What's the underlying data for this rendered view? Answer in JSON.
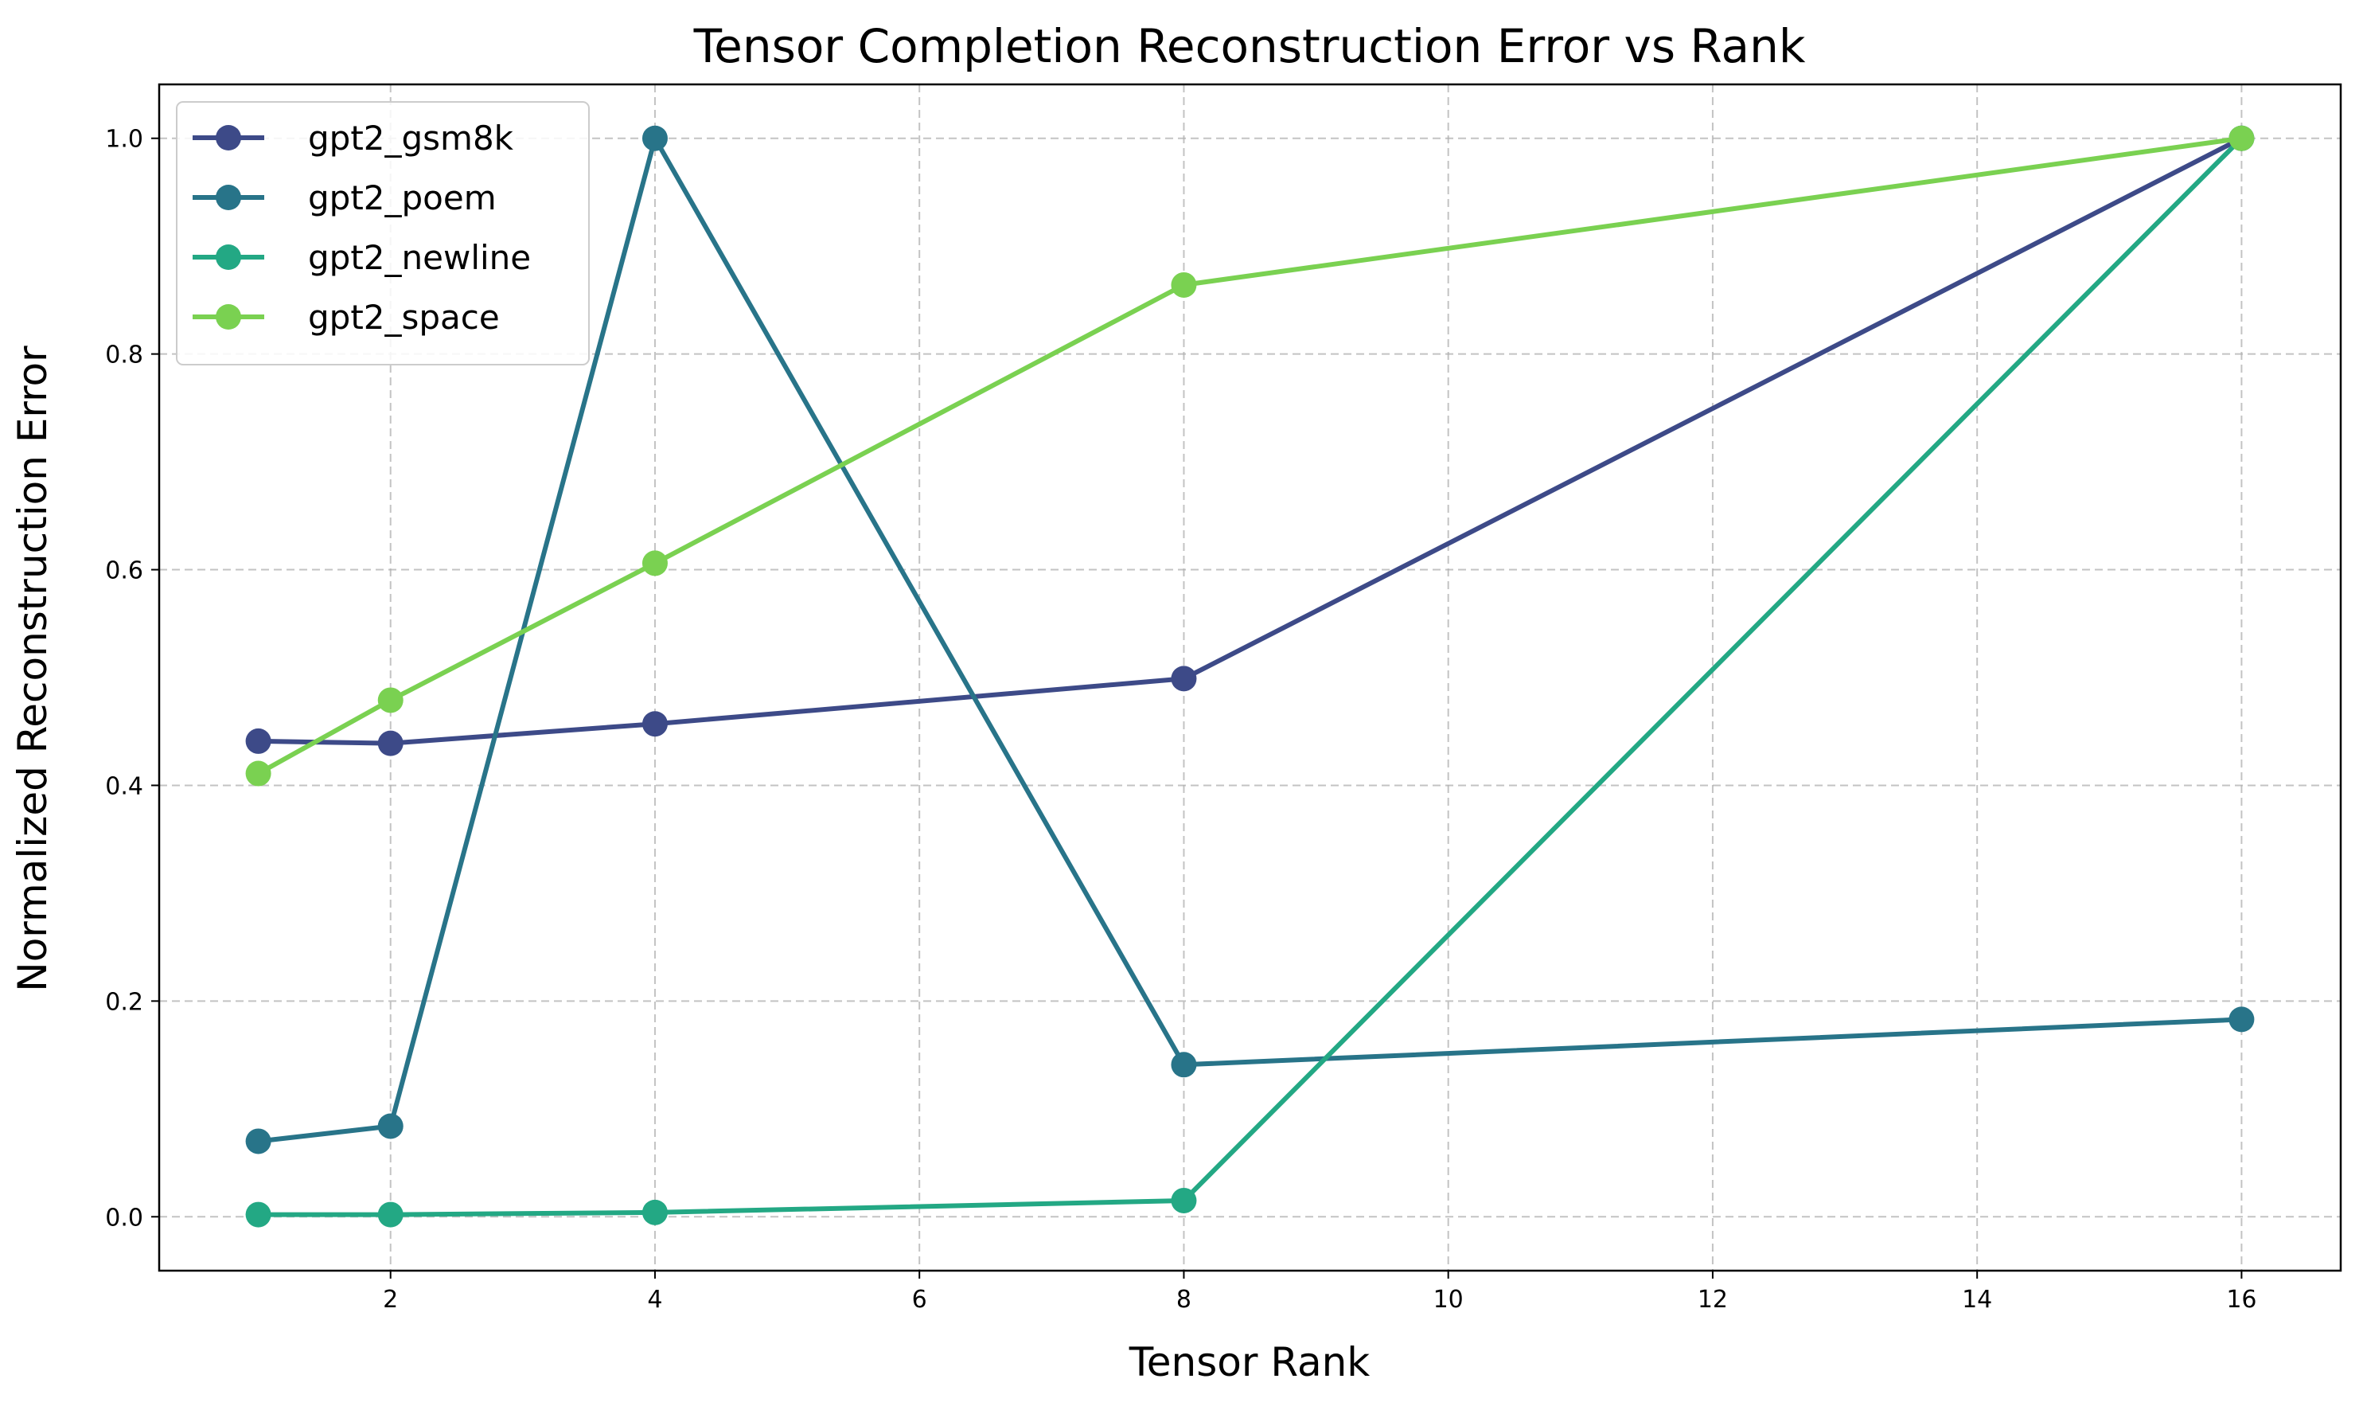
{
  "chart_data": {
    "type": "line",
    "title": "Tensor Completion Reconstruction Error vs Rank",
    "xlabel": "Tensor Rank",
    "ylabel": "Normalized Reconstruction Error",
    "xlim": [
      0.25,
      16.75
    ],
    "ylim": [
      -0.05,
      1.05
    ],
    "xticks": [
      2,
      4,
      6,
      8,
      10,
      12,
      14,
      16
    ],
    "yticks": [
      0.0,
      0.2,
      0.4,
      0.6,
      0.8,
      1.0
    ],
    "xtick_labels": [
      "2",
      "4",
      "6",
      "8",
      "10",
      "12",
      "14",
      "16"
    ],
    "ytick_labels": [
      "0.0",
      "0.2",
      "0.4",
      "0.6",
      "0.8",
      "1.0"
    ],
    "grid": true,
    "legend_position": "top-left",
    "x": [
      1,
      2,
      4,
      8,
      16
    ],
    "series": [
      {
        "name": "gpt2_gsm8k",
        "color": "#3d4a88",
        "values": [
          0.441,
          0.439,
          0.457,
          0.499,
          1.0
        ]
      },
      {
        "name": "gpt2_poem",
        "color": "#287489",
        "values": [
          0.07,
          0.084,
          1.0,
          0.141,
          0.183
        ]
      },
      {
        "name": "gpt2_newline",
        "color": "#23a884",
        "values": [
          0.002,
          0.002,
          0.004,
          0.015,
          1.0
        ]
      },
      {
        "name": "gpt2_space",
        "color": "#7ad151",
        "values": [
          0.411,
          0.479,
          0.606,
          0.864,
          1.0
        ]
      }
    ]
  }
}
